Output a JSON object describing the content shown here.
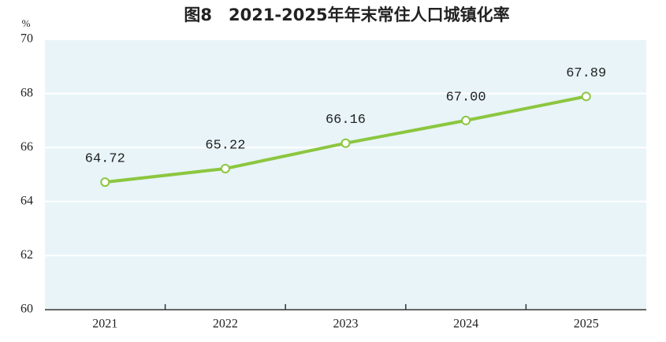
{
  "chart_data": {
    "type": "line",
    "title": "图8　2021-2025年年末常住人口城镇化率",
    "y_label": "%",
    "categories": [
      "2021",
      "2022",
      "2023",
      "2024",
      "2025"
    ],
    "series": [
      {
        "color": "#8cc63f",
        "values": [
          64.72,
          65.22,
          66.16,
          67.0,
          67.89
        ],
        "value_labels": [
          "64.72",
          "65.22",
          "66.16",
          "67.00",
          "67.89"
        ]
      }
    ],
    "ylim": [
      60,
      70
    ],
    "yticks": [
      60,
      62,
      64,
      66,
      68,
      70
    ],
    "grid": true
  }
}
